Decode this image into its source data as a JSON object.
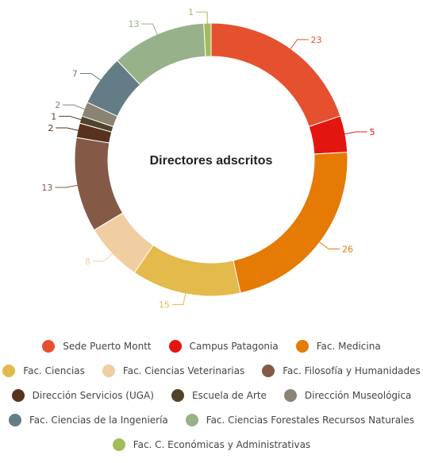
{
  "chart_data": {
    "type": "pie",
    "title": "Directores adscritos",
    "legend_position": "bottom",
    "series": [
      {
        "name": "Sede Puerto Montt",
        "value": 23,
        "color": "#E5512F"
      },
      {
        "name": "Campus Patagonia",
        "value": 5,
        "color": "#E3150F"
      },
      {
        "name": "Fac. Medicina",
        "value": 26,
        "color": "#E57A05"
      },
      {
        "name": "Fac. Ciencias",
        "value": 15,
        "color": "#E4BA4D"
      },
      {
        "name": "Fac. Ciencias Veterinarias",
        "value": 8,
        "color": "#F0CEA2"
      },
      {
        "name": "Fac. Filosofía y Humanidades",
        "value": 13,
        "color": "#845A46"
      },
      {
        "name": "Dirección Servicios (UGA)",
        "value": 2,
        "color": "#56321F"
      },
      {
        "name": "Escuela de Arte",
        "value": 1,
        "color": "#4F4329"
      },
      {
        "name": "Dirección Museológica",
        "value": 2,
        "color": "#8B8373"
      },
      {
        "name": "Fac. Ciencias de la Ingeniería",
        "value": 7,
        "color": "#637C85"
      },
      {
        "name": "Fac. Ciencias Forestales Recursos Naturales",
        "value": 13,
        "color": "#97B18B"
      },
      {
        "name": "Fac. C. Económicas y Administrativas",
        "value": 1,
        "color": "#A3BC5B"
      }
    ]
  }
}
